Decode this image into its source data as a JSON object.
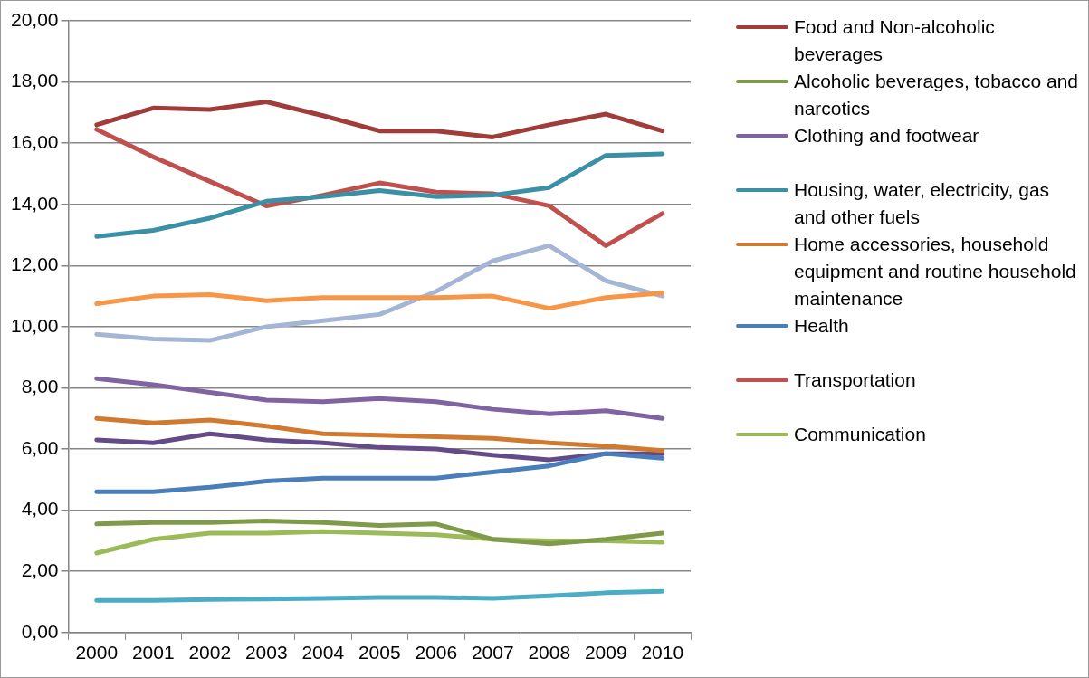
{
  "chart_data": {
    "type": "line",
    "categories": [
      "2000",
      "2001",
      "2002",
      "2003",
      "2004",
      "2005",
      "2006",
      "2007",
      "2008",
      "2009",
      "2010"
    ],
    "ylim": [
      0,
      20
    ],
    "yticks": [
      {
        "value": 0,
        "label": "0,00"
      },
      {
        "value": 2,
        "label": "2,00"
      },
      {
        "value": 4,
        "label": "4,00"
      },
      {
        "value": 6,
        "label": "6,00"
      },
      {
        "value": 8,
        "label": "8,00"
      },
      {
        "value": 10,
        "label": "10,00"
      },
      {
        "value": 12,
        "label": "12,00"
      },
      {
        "value": 14,
        "label": "14,00"
      },
      {
        "value": 16,
        "label": "16,00"
      },
      {
        "value": 18,
        "label": "18,00"
      },
      {
        "value": 20,
        "label": "20,00"
      }
    ],
    "grid": "y",
    "legend": "right",
    "marker": "none",
    "line_style": "solid",
    "series": [
      {
        "name": "Food and Non-alcoholic beverages",
        "color": "#a03c3a",
        "values": [
          16.6,
          17.15,
          17.1,
          17.35,
          16.9,
          16.4,
          16.4,
          16.2,
          16.6,
          16.95,
          16.4
        ]
      },
      {
        "name": "Alcoholic beverages, tobacco and narcotics",
        "color": "#7f9a48",
        "values": [
          3.55,
          3.6,
          3.6,
          3.65,
          3.6,
          3.5,
          3.55,
          3.05,
          2.9,
          3.05,
          3.25
        ]
      },
      {
        "name": "Clothing and footwear",
        "color": "#8064a2",
        "values": [
          8.3,
          8.1,
          7.85,
          7.6,
          7.55,
          7.65,
          7.55,
          7.3,
          7.15,
          7.25,
          7.0
        ]
      },
      {
        "name": "Housing, water, electricity, gas and other fuels",
        "color": "#3a90a4",
        "values": [
          12.95,
          13.15,
          13.55,
          14.1,
          14.25,
          14.45,
          14.25,
          14.3,
          14.55,
          15.6,
          15.65
        ]
      },
      {
        "name": "Home accessories, household equipment and routine household maintenance",
        "color": "#d07a30",
        "values": [
          7.0,
          6.85,
          6.95,
          6.75,
          6.5,
          6.45,
          6.4,
          6.35,
          6.2,
          6.1,
          5.95
        ]
      },
      {
        "name": "Health",
        "color": "#4a7ebb",
        "values": [
          4.6,
          4.6,
          4.75,
          4.95,
          5.05,
          5.05,
          5.05,
          5.25,
          5.45,
          5.85,
          5.7
        ]
      },
      {
        "name": "Transportation",
        "color": "#c0504d",
        "values": [
          16.45,
          15.55,
          14.75,
          13.95,
          14.3,
          14.7,
          14.4,
          14.35,
          13.95,
          12.65,
          13.7
        ]
      },
      {
        "name": "Communication",
        "color": "#9bbb59",
        "values": [
          2.6,
          3.05,
          3.25,
          3.25,
          3.3,
          3.25,
          3.2,
          3.05,
          3.0,
          3.0,
          2.95
        ]
      },
      {
        "color": "#f79646",
        "values": [
          10.75,
          11.0,
          11.05,
          10.85,
          10.95,
          10.95,
          10.95,
          11.0,
          10.6,
          10.95,
          11.1
        ]
      },
      {
        "color": "#a5b5d5",
        "values": [
          9.75,
          9.6,
          9.55,
          10.0,
          10.2,
          10.4,
          11.15,
          12.15,
          12.65,
          11.5,
          11.0
        ]
      },
      {
        "color": "#644a86",
        "values": [
          6.3,
          6.2,
          6.5,
          6.3,
          6.2,
          6.05,
          6.0,
          5.8,
          5.65,
          5.85,
          5.85
        ]
      },
      {
        "color": "#4bacc6",
        "values": [
          1.05,
          1.05,
          1.08,
          1.1,
          1.12,
          1.15,
          1.15,
          1.12,
          1.2,
          1.3,
          1.35
        ]
      }
    ]
  }
}
